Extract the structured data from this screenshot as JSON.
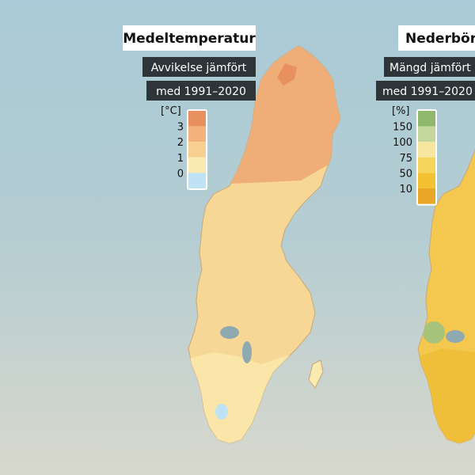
{
  "temperature": {
    "title": "Medeltemperatur",
    "subtitle_lines": [
      "Avvikelse jämfört",
      "med 1991–2020"
    ],
    "unit": "[°C]",
    "legend": {
      "labels": [
        "3",
        "2",
        "1",
        "0"
      ],
      "colors": [
        "#e8915e",
        "#f2b47c",
        "#f7cf8e",
        "#faeab0",
        "#bfe3f4"
      ]
    }
  },
  "precipitation": {
    "title": "Nederbörd",
    "subtitle_lines": [
      "Mängd jämfört",
      "med 1991–2020"
    ],
    "unit": "[%]",
    "legend": {
      "labels": [
        "150",
        "100",
        "75",
        "50",
        "10"
      ],
      "colors": [
        "#8fb86a",
        "#c3d79a",
        "#f7e6a0",
        "#f6d55a",
        "#f2c232",
        "#e8a825"
      ]
    }
  }
}
